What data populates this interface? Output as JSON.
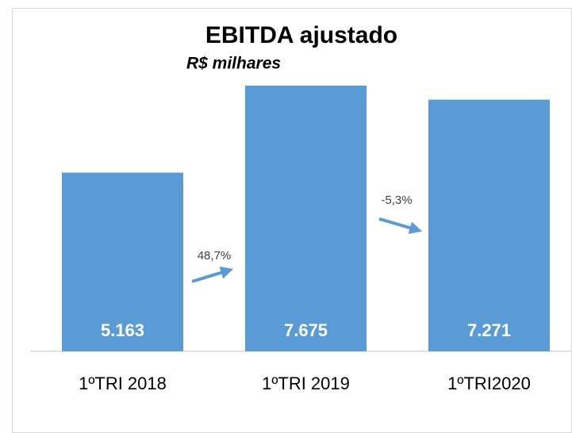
{
  "chart_data": {
    "type": "bar",
    "title": "EBITDA ajustado",
    "subtitle": "R$ milhares",
    "categories": [
      "1ºTRI 2018",
      "1ºTRI 2019",
      "1ºTRI2020"
    ],
    "values": [
      5163,
      7675,
      7271
    ],
    "value_labels": [
      "5.163",
      "7.675",
      "7.271"
    ],
    "color": "#5b9bd5",
    "annotations": [
      "48,7%",
      "-5,3%"
    ]
  }
}
